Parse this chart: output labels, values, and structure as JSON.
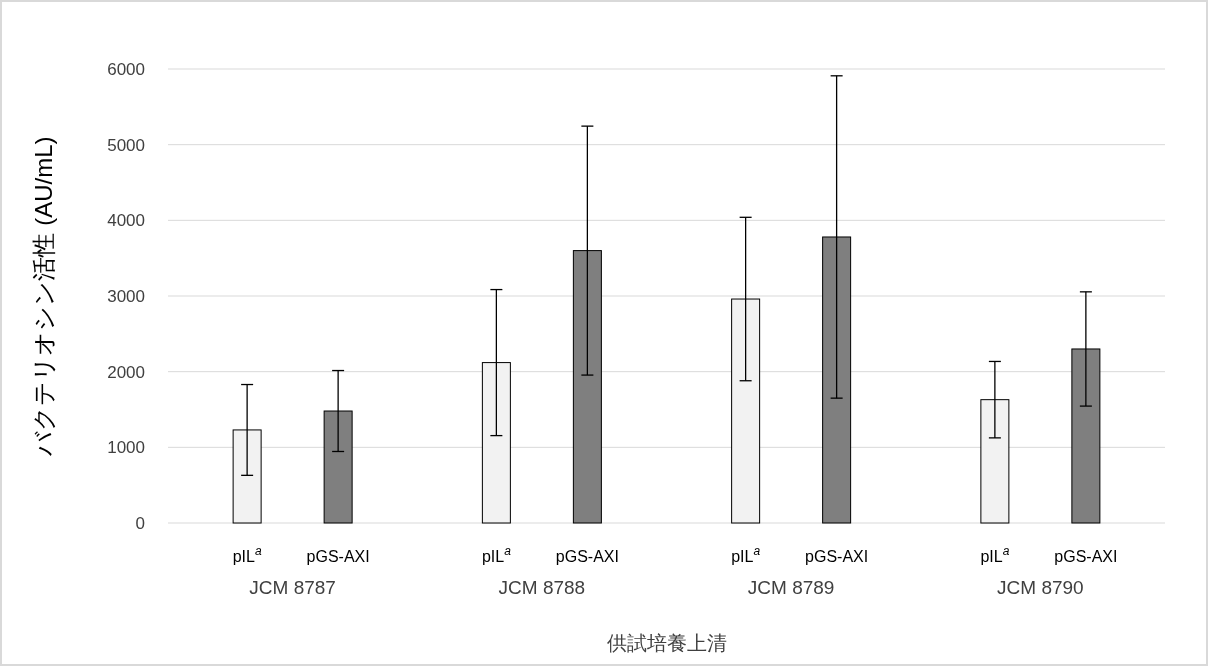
{
  "chart_data": {
    "type": "bar",
    "xlabel": "供試培養上清",
    "ylabel": "バクテリオシン活性 (AU/mL)",
    "categories": [
      "JCM 8787",
      "JCM 8788",
      "JCM 8789",
      "JCM 8790"
    ],
    "series": [
      {
        "name": "pIL$^{a}$",
        "color": "#f2f2f2",
        "values": [
          1230,
          2120,
          2960,
          1630
        ],
        "errors": [
          600,
          965,
          1080,
          505
        ]
      },
      {
        "name": "pGS-AXI",
        "color": "#7f7f7f",
        "values": [
          1480,
          3600,
          3780,
          2300
        ],
        "errors": [
          535,
          1645,
          2130,
          755
        ]
      }
    ],
    "ylim": [
      0,
      6000
    ],
    "yticks": [
      0,
      1000,
      2000,
      3000,
      4000,
      5000,
      6000
    ],
    "grid": "y"
  }
}
